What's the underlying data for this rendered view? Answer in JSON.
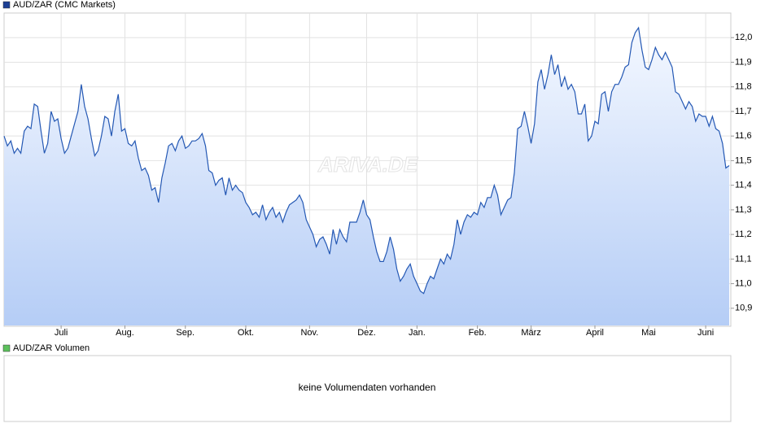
{
  "chart_data": [
    {
      "type": "line",
      "series": [
        {
          "name": "AUD/ZAR (CMC Markets)",
          "color": "#2458b4",
          "values": [
            11.6,
            11.56,
            11.58,
            11.53,
            11.55,
            11.53,
            11.62,
            11.64,
            11.63,
            11.73,
            11.72,
            11.62,
            11.53,
            11.57,
            11.7,
            11.66,
            11.67,
            11.59,
            11.53,
            11.55,
            11.6,
            11.65,
            11.7,
            11.81,
            11.72,
            11.67,
            11.59,
            11.52,
            11.54,
            11.6,
            11.68,
            11.67,
            11.6,
            11.7,
            11.77,
            11.62,
            11.63,
            11.57,
            11.56,
            11.58,
            11.51,
            11.46,
            11.47,
            11.44,
            11.38,
            11.39,
            11.33,
            11.43,
            11.49,
            11.56,
            11.57,
            11.54,
            11.58,
            11.6,
            11.55,
            11.56,
            11.58,
            11.58,
            11.59,
            11.61,
            11.56,
            11.46,
            11.45,
            11.4,
            11.42,
            11.43,
            11.36,
            11.43,
            11.38,
            11.4,
            11.38,
            11.37,
            11.33,
            11.31,
            11.28,
            11.29,
            11.27,
            11.32,
            11.26,
            11.29,
            11.31,
            11.27,
            11.29,
            11.25,
            11.29,
            11.32,
            11.33,
            11.34,
            11.36,
            11.33,
            11.26,
            11.23,
            11.2,
            11.15,
            11.18,
            11.19,
            11.16,
            11.12,
            11.22,
            11.16,
            11.22,
            11.19,
            11.17,
            11.25,
            11.25,
            11.25,
            11.29,
            11.34,
            11.28,
            11.26,
            11.19,
            11.13,
            11.09,
            11.09,
            11.13,
            11.19,
            11.14,
            11.06,
            11.01,
            11.03,
            11.06,
            11.08,
            11.03,
            11.0,
            10.97,
            10.96,
            11.0,
            11.03,
            11.02,
            11.06,
            11.1,
            11.08,
            11.12,
            11.1,
            11.16,
            11.26,
            11.2,
            11.25,
            11.28,
            11.27,
            11.29,
            11.28,
            11.33,
            11.31,
            11.35,
            11.35,
            11.4,
            11.36,
            11.28,
            11.31,
            11.34,
            11.35,
            11.45,
            11.63,
            11.64,
            11.7,
            11.64,
            11.57,
            11.65,
            11.82,
            11.87,
            11.79,
            11.85,
            11.93,
            11.85,
            11.89,
            11.8,
            11.84,
            11.79,
            11.81,
            11.78,
            11.69,
            11.69,
            11.73,
            11.58,
            11.6,
            11.66,
            11.65,
            11.77,
            11.78,
            11.7,
            11.78,
            11.81,
            11.81,
            11.84,
            11.88,
            11.89,
            11.98,
            12.02,
            12.04,
            11.95,
            11.88,
            11.87,
            11.91,
            11.96,
            11.93,
            11.91,
            11.94,
            11.91,
            11.88,
            11.78,
            11.77,
            11.74,
            11.71,
            11.74,
            11.72,
            11.66,
            11.69,
            11.68,
            11.68,
            11.64,
            11.68,
            11.63,
            11.62,
            11.57,
            11.47,
            11.48
          ]
        }
      ],
      "legend_color": "#1c3f94",
      "fill_top": "#f4f8ff",
      "fill_bottom": "#b5cdf6",
      "xlim": [
        0,
        216
      ],
      "xticks": [
        {
          "value": 17,
          "label": "Juli"
        },
        {
          "value": 36,
          "label": "Aug."
        },
        {
          "value": 54,
          "label": "Sep."
        },
        {
          "value": 72,
          "label": "Okt."
        },
        {
          "value": 91,
          "label": "Nov."
        },
        {
          "value": 108,
          "label": "Dez."
        },
        {
          "value": 123,
          "label": "Jan."
        },
        {
          "value": 141,
          "label": "Feb."
        },
        {
          "value": 157,
          "label": "März"
        },
        {
          "value": 176,
          "label": "April"
        },
        {
          "value": 192,
          "label": "Mai"
        },
        {
          "value": 209,
          "label": "Juni"
        }
      ],
      "ylim": [
        10.83,
        12.1
      ],
      "yticks": [
        {
          "value": 10.9,
          "label": "10,9"
        },
        {
          "value": 11.0,
          "label": "11,0"
        },
        {
          "value": 11.1,
          "label": "11,1"
        },
        {
          "value": 11.2,
          "label": "11,2"
        },
        {
          "value": 11.3,
          "label": "11,3"
        },
        {
          "value": 11.4,
          "label": "11,4"
        },
        {
          "value": 11.5,
          "label": "11,5"
        },
        {
          "value": 11.6,
          "label": "11,6"
        },
        {
          "value": 11.7,
          "label": "11,7"
        },
        {
          "value": 11.8,
          "label": "11,8"
        },
        {
          "value": 11.9,
          "label": "11,9"
        },
        {
          "value": 12.0,
          "label": "12,0"
        }
      ],
      "grid": true,
      "watermark": "ARIVA.DE"
    },
    {
      "type": "empty",
      "title": "AUD/ZAR Volumen",
      "legend_color": "#5cc15c",
      "message": "keine Volumendaten vorhanden"
    }
  ]
}
